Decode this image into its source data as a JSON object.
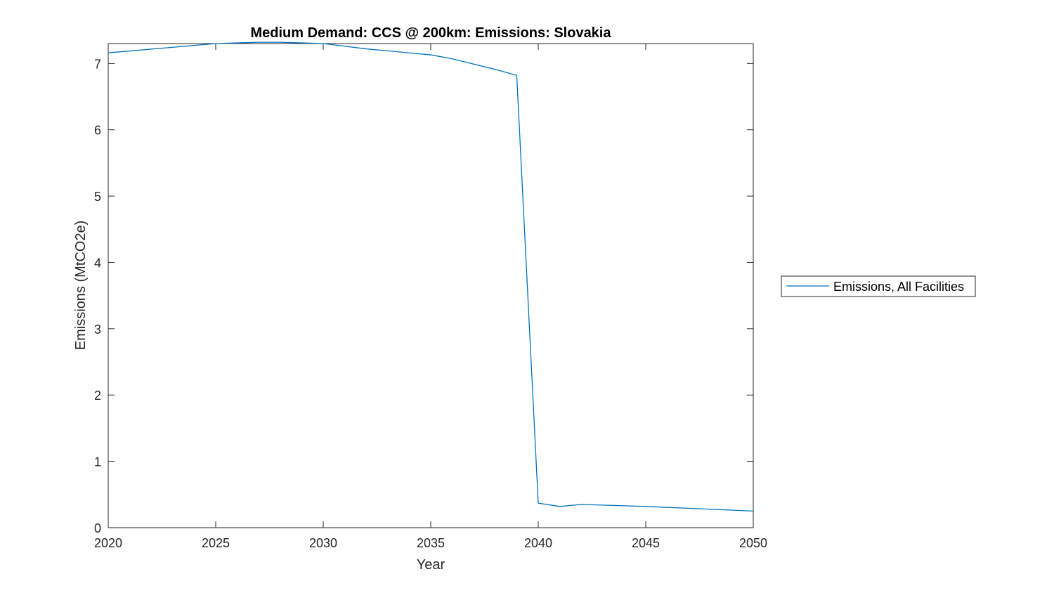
{
  "chart_data": {
    "type": "line",
    "title": "Medium Demand: CCS @ 200km: Emissions: Slovakia",
    "xlabel": "Year",
    "ylabel": "Emissions (MtCO2e)",
    "xlim": [
      2020,
      2050
    ],
    "ylim": [
      0,
      7.3
    ],
    "xticks": [
      2020,
      2025,
      2030,
      2035,
      2040,
      2045,
      2050
    ],
    "yticks": [
      0,
      1,
      2,
      3,
      4,
      5,
      6,
      7
    ],
    "grid": false,
    "legend_position": "outside-right",
    "series": [
      {
        "name": "Emissions, All Facilities",
        "color": "#0072BD",
        "x": [
          2020,
          2025,
          2026,
          2027,
          2028,
          2029,
          2030,
          2031,
          2032,
          2033,
          2034,
          2035,
          2036,
          2037,
          2038,
          2039,
          2040,
          2041,
          2042,
          2045,
          2050
        ],
        "y": [
          7.16,
          7.3,
          7.31,
          7.32,
          7.32,
          7.31,
          7.3,
          7.26,
          7.22,
          7.19,
          7.16,
          7.13,
          7.07,
          6.99,
          6.91,
          6.82,
          0.37,
          0.32,
          0.35,
          0.32,
          0.25
        ]
      }
    ]
  }
}
